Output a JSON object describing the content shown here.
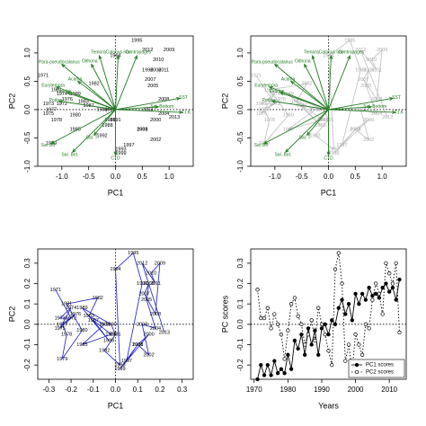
{
  "chart_data": [
    {
      "type": "biplot",
      "xlabel": "PC1",
      "ylabel": "PC2",
      "xlim": [
        -1.45,
        1.45
      ],
      "ylim": [
        -1.0,
        1.3
      ],
      "xticks": [
        {
          "value": -1,
          "label": "-1.0"
        },
        -0.5,
        {
          "value": 0,
          "label": "0.0"
        },
        0.5,
        {
          "value": 1,
          "label": "1.0"
        }
      ],
      "yticks": [
        {
          "value": -1,
          "label": "-1.0"
        },
        -0.5,
        {
          "value": 0,
          "label": "0.0"
        },
        0.5,
        {
          "value": 1,
          "label": "1.0"
        }
      ],
      "zero_lines": true,
      "connect": false,
      "point_color": "#000000",
      "arrow_color": "#1f7a1f",
      "labels": [
        "1971",
        "1972",
        "1973",
        "1974",
        "1975",
        "1976",
        "1977",
        "1978",
        "1979",
        "1980",
        "1981",
        "1982",
        "1983",
        "1984",
        "1985",
        "1986",
        "1987",
        "1988",
        "1989",
        "1990",
        "1991",
        "1992",
        "1993",
        "1994",
        "1995",
        "1996",
        "1997",
        "1998",
        "1999",
        "2000",
        "2001",
        "2002",
        "2003",
        "2004",
        "2005",
        "2006",
        "2007",
        "2008",
        "2009",
        "2010",
        "2011",
        "2012",
        "2013"
      ],
      "x": [
        -1.35,
        -1.0,
        -1.25,
        -1.0,
        -1.25,
        -0.9,
        -1.2,
        -1.1,
        -1.2,
        -0.75,
        -1.1,
        -0.4,
        -0.6,
        -0.25,
        -0.75,
        -0.1,
        -0.5,
        -0.15,
        -0.75,
        -0.1,
        0.0,
        -0.25,
        0.1,
        0.0,
        0.4,
        0.6,
        0.25,
        0.5,
        0.1,
        0.75,
        0.5,
        0.75,
        0.6,
        0.9,
        0.7,
        0.75,
        0.65,
        0.9,
        1.0,
        0.8,
        0.9,
        0.6,
        1.1
      ],
      "y": [
        0.6,
        0.1,
        0.1,
        0.28,
        -0.07,
        0.18,
        0.0,
        -0.18,
        -0.6,
        -0.1,
        0.35,
        0.46,
        0.14,
        0.0,
        -0.35,
        -0.18,
        0.07,
        -0.28,
        0.28,
        0.0,
        -0.18,
        -0.46,
        -0.7,
        0.95,
        1.22,
        0.7,
        -0.63,
        -0.35,
        -0.77,
        -0.18,
        -0.35,
        -0.53,
        0.0,
        -0.07,
        0.42,
        0.7,
        0.53,
        0.18,
        1.05,
        0.88,
        0.7,
        1.05,
        -0.14
      ],
      "arrows": [
        {
          "name": "Temora",
          "x": -0.3,
          "y": 0.95
        },
        {
          "name": "Oithona",
          "x": -0.45,
          "y": 0.8
        },
        {
          "name": "Calanus nau",
          "x": 0.05,
          "y": 0.95
        },
        {
          "name": "Centropages",
          "x": 0.4,
          "y": 0.95
        },
        {
          "name": "Para-pseudocalanus",
          "x": -1.0,
          "y": 0.8
        },
        {
          "name": "Acartia",
          "x": -0.7,
          "y": 0.5
        },
        {
          "name": "Eurytemora",
          "x": -1.1,
          "y": 0.4
        },
        {
          "name": "Evadne",
          "x": -0.9,
          "y": 0.3
        },
        {
          "name": "Podon",
          "x": -1.05,
          "y": 0.15
        },
        {
          "name": "Sal 5m",
          "x": -1.2,
          "y": -0.6
        },
        {
          "name": "Sal. Bot.",
          "x": -0.8,
          "y": -0.75
        },
        {
          "name": "Sal. T",
          "x": -0.4,
          "y": -0.45
        },
        {
          "name": "CTD",
          "x": 0.0,
          "y": -0.8
        },
        {
          "name": "SST",
          "x": 1.2,
          "y": 0.2
        },
        {
          "name": "T.I.K",
          "x": 1.25,
          "y": -0.05
        },
        {
          "name": "Sal. Bottom",
          "x": 0.8,
          "y": 0.05
        }
      ]
    },
    {
      "type": "biplot",
      "xlabel": "PC1",
      "ylabel": "PC2",
      "xlim": [
        -1.45,
        1.45
      ],
      "ylim": [
        -1.0,
        1.3
      ],
      "xticks": [
        {
          "value": -1,
          "label": "-1.0"
        },
        -0.5,
        {
          "value": 0,
          "label": "0.0"
        },
        0.5,
        {
          "value": 1,
          "label": "1.0"
        }
      ],
      "yticks": [
        {
          "value": -1,
          "label": "-1.0"
        },
        -0.5,
        {
          "value": 0,
          "label": "0.0"
        },
        0.5,
        {
          "value": 1,
          "label": "1.0"
        }
      ],
      "zero_lines": true,
      "connect": true,
      "point_color": "#aaaaaa",
      "line_color": "#c4c4c4",
      "arrow_color": "#1f7a1f",
      "labels": [
        "1971",
        "1972",
        "1973",
        "1974",
        "1975",
        "1976",
        "1977",
        "1978",
        "1979",
        "1980",
        "1981",
        "1982",
        "1983",
        "1984",
        "1985",
        "1986",
        "1987",
        "1988",
        "1989",
        "1990",
        "1991",
        "1992",
        "1993",
        "1994",
        "1995",
        "1996",
        "1997",
        "1998",
        "1999",
        "2000",
        "2001",
        "2002",
        "2003",
        "2004",
        "2005",
        "2006",
        "2007",
        "2008",
        "2009",
        "2010",
        "2011",
        "2012",
        "2013"
      ],
      "x": [
        -1.35,
        -1.0,
        -1.25,
        -1.0,
        -1.25,
        -0.9,
        -1.2,
        -1.1,
        -1.2,
        -0.75,
        -1.1,
        -0.4,
        -0.6,
        -0.25,
        -0.75,
        -0.1,
        -0.5,
        -0.15,
        -0.75,
        -0.1,
        0.0,
        -0.25,
        0.1,
        0.0,
        0.4,
        0.6,
        0.25,
        0.5,
        0.1,
        0.75,
        0.5,
        0.75,
        0.6,
        0.9,
        0.7,
        0.75,
        0.65,
        0.9,
        1.0,
        0.8,
        0.9,
        0.6,
        1.1
      ],
      "y": [
        0.6,
        0.1,
        0.1,
        0.28,
        -0.07,
        0.18,
        0.0,
        -0.18,
        -0.6,
        -0.1,
        0.35,
        0.46,
        0.14,
        0.0,
        -0.35,
        -0.18,
        0.07,
        -0.28,
        0.28,
        0.0,
        -0.18,
        -0.46,
        -0.7,
        0.95,
        1.22,
        0.7,
        -0.63,
        -0.35,
        -0.77,
        -0.18,
        -0.35,
        -0.53,
        0.0,
        -0.07,
        0.42,
        0.7,
        0.53,
        0.18,
        1.05,
        0.88,
        0.7,
        1.05,
        -0.14
      ],
      "arrows": [
        {
          "name": "Temora",
          "x": -0.3,
          "y": 0.95
        },
        {
          "name": "Oithona",
          "x": -0.45,
          "y": 0.8
        },
        {
          "name": "Calanus nau",
          "x": 0.05,
          "y": 0.95
        },
        {
          "name": "Centropages",
          "x": 0.4,
          "y": 0.95
        },
        {
          "name": "Para-pseudocalanus",
          "x": -1.0,
          "y": 0.8
        },
        {
          "name": "Acartia",
          "x": -0.7,
          "y": 0.5
        },
        {
          "name": "Eurytemora",
          "x": -1.1,
          "y": 0.4
        },
        {
          "name": "Evadne",
          "x": -0.9,
          "y": 0.3
        },
        {
          "name": "Podon",
          "x": -1.05,
          "y": 0.15
        },
        {
          "name": "Sal 5m",
          "x": -1.2,
          "y": -0.6
        },
        {
          "name": "Sal. Bot.",
          "x": -0.8,
          "y": -0.75
        },
        {
          "name": "Sal. T",
          "x": -0.4,
          "y": -0.45
        },
        {
          "name": "CTD",
          "x": 0.0,
          "y": -0.8
        },
        {
          "name": "SST",
          "x": 1.2,
          "y": 0.2
        },
        {
          "name": "T.I.K",
          "x": 1.25,
          "y": -0.05
        },
        {
          "name": "Sal. Bottom",
          "x": 0.8,
          "y": 0.05
        }
      ]
    },
    {
      "type": "path_scatter",
      "xlabel": "PC1",
      "ylabel": "PC2",
      "xlim": [
        -0.35,
        0.35
      ],
      "ylim": [
        -0.27,
        0.37
      ],
      "xticks": [
        -0.3,
        -0.2,
        -0.1,
        {
          "value": 0,
          "label": "0.0"
        },
        0.1,
        0.2,
        0.3
      ],
      "yticks": [
        -0.2,
        -0.1,
        {
          "value": 0,
          "label": "0.0"
        },
        0.1,
        0.2,
        0.3
      ],
      "zero_lines": true,
      "connect": true,
      "line_color": "#2f2fcc",
      "point_color": "#000000",
      "labels": [
        "1971",
        "1972",
        "1973",
        "1974",
        "1975",
        "1976",
        "1977",
        "1978",
        "1979",
        "1980",
        "1981",
        "1982",
        "1983",
        "1984",
        "1985",
        "1986",
        "1987",
        "1988",
        "1989",
        "1990",
        "1991",
        "1992",
        "1993",
        "1994",
        "1995",
        "1996",
        "1997",
        "1998",
        "1999",
        "2000",
        "2001",
        "2002",
        "2003",
        "2004",
        "2005",
        "2006",
        "2007",
        "2008",
        "2009",
        "2010",
        "2011",
        "2012",
        "2013"
      ],
      "x": [
        -0.27,
        -0.2,
        -0.25,
        -0.2,
        -0.25,
        -0.18,
        -0.24,
        -0.22,
        -0.24,
        -0.15,
        -0.22,
        -0.08,
        -0.12,
        -0.05,
        -0.15,
        -0.02,
        -0.1,
        -0.03,
        -0.15,
        -0.02,
        0.0,
        -0.05,
        0.02,
        0.0,
        0.08,
        0.12,
        0.05,
        0.1,
        0.02,
        0.15,
        0.1,
        0.15,
        0.12,
        0.18,
        0.14,
        0.15,
        0.13,
        0.18,
        0.2,
        0.16,
        0.18,
        0.12,
        0.22
      ],
      "y": [
        0.17,
        0.03,
        0.03,
        0.08,
        -0.02,
        0.05,
        0.0,
        -0.05,
        -0.17,
        -0.03,
        0.1,
        0.13,
        0.04,
        0.0,
        -0.1,
        -0.05,
        0.02,
        -0.08,
        0.08,
        0.0,
        -0.05,
        -0.13,
        -0.2,
        0.27,
        0.35,
        0.2,
        -0.18,
        -0.1,
        -0.22,
        -0.05,
        -0.1,
        -0.15,
        0.0,
        -0.02,
        0.12,
        0.2,
        0.15,
        0.05,
        0.3,
        0.25,
        0.2,
        0.3,
        -0.04
      ]
    },
    {
      "type": "line",
      "xlabel": "Years",
      "ylabel": "PC scores",
      "xlim": [
        1969,
        2015
      ],
      "ylim": [
        -0.27,
        0.37
      ],
      "xticks": [
        1970,
        1980,
        1990,
        2000,
        2010
      ],
      "yticks": [
        -0.2,
        -0.1,
        {
          "value": 0,
          "label": "0.0"
        },
        0.1,
        0.2,
        0.3
      ],
      "zero_lines": false,
      "hline_zero": true,
      "legend": "bottom-right",
      "x": [
        1971,
        1972,
        1973,
        1974,
        1975,
        1976,
        1977,
        1978,
        1979,
        1980,
        1981,
        1982,
        1983,
        1984,
        1985,
        1986,
        1987,
        1988,
        1989,
        1990,
        1991,
        1992,
        1993,
        1994,
        1995,
        1996,
        1997,
        1998,
        1999,
        2000,
        2001,
        2002,
        2003,
        2004,
        2005,
        2006,
        2007,
        2008,
        2009,
        2010,
        2011,
        2012,
        2013
      ],
      "series": [
        {
          "name": "PC1 scores",
          "color": "#000000",
          "dash": false,
          "filled": true,
          "values": [
            -0.27,
            -0.2,
            -0.25,
            -0.2,
            -0.25,
            -0.18,
            -0.24,
            -0.22,
            -0.24,
            -0.15,
            -0.22,
            -0.08,
            -0.12,
            -0.05,
            -0.15,
            -0.02,
            -0.1,
            -0.03,
            -0.15,
            -0.02,
            0.0,
            -0.05,
            0.02,
            0.0,
            0.08,
            0.12,
            0.05,
            0.1,
            0.02,
            0.15,
            0.1,
            0.15,
            0.12,
            0.18,
            0.14,
            0.15,
            0.13,
            0.18,
            0.2,
            0.16,
            0.18,
            0.12,
            0.22
          ]
        },
        {
          "name": "PC2 scores",
          "color": "#000000",
          "dash": true,
          "filled": false,
          "values": [
            0.17,
            0.03,
            0.03,
            0.08,
            -0.02,
            0.05,
            0.0,
            -0.05,
            -0.17,
            -0.03,
            0.1,
            0.13,
            0.04,
            0.0,
            -0.1,
            -0.05,
            0.02,
            -0.08,
            0.08,
            0.0,
            -0.05,
            -0.13,
            -0.2,
            0.27,
            0.35,
            0.2,
            -0.18,
            -0.1,
            -0.22,
            -0.05,
            -0.1,
            -0.15,
            0.0,
            -0.02,
            0.12,
            0.2,
            0.15,
            0.05,
            0.3,
            0.25,
            0.2,
            0.3,
            -0.04
          ]
        }
      ]
    }
  ]
}
